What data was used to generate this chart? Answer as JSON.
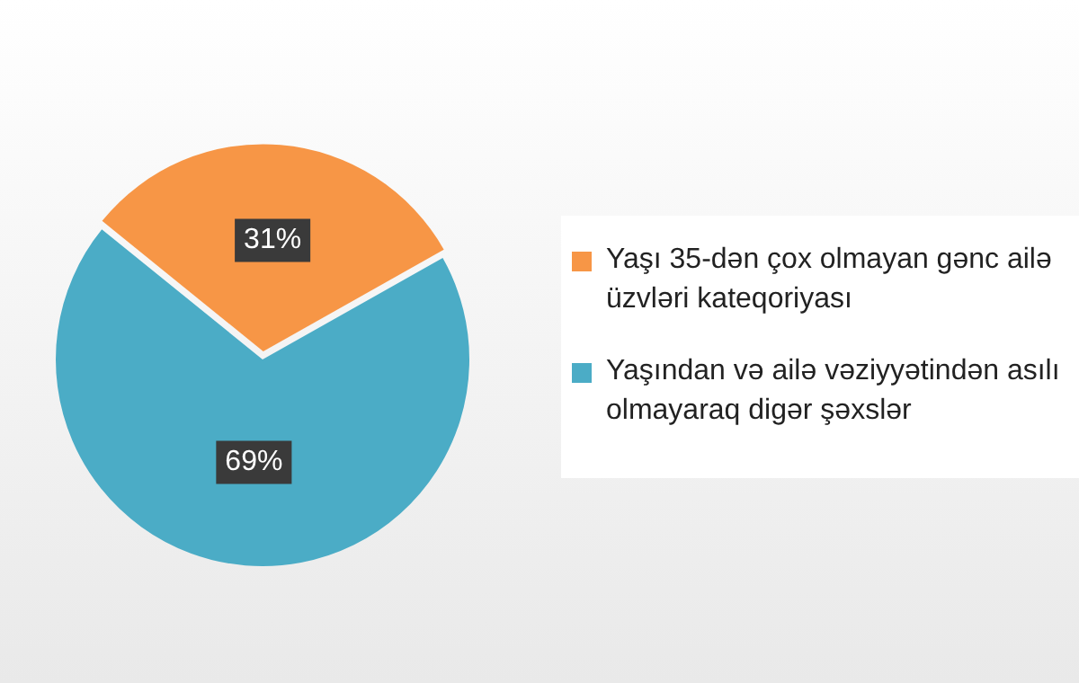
{
  "chart_data": {
    "type": "pie",
    "categories": [
      "Yaşı 35-dən çox olmayan gənc ailə üzvləri kateqoriyası",
      "Yaşından və ailə vəziyyətindən asılı olmayaraq digər şəxslər"
    ],
    "values": [
      31,
      69
    ],
    "colors": [
      "#f79646",
      "#4bacc6"
    ],
    "value_labels": [
      "31%",
      "69%"
    ],
    "legend": "right"
  }
}
